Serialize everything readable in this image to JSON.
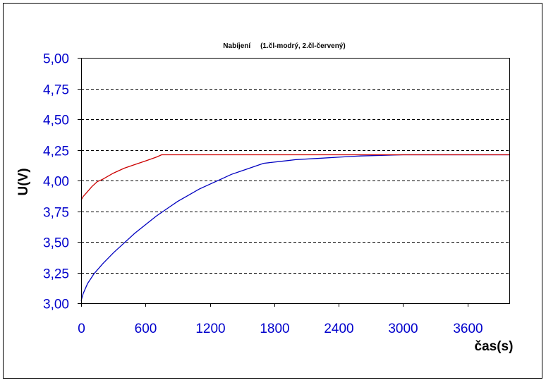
{
  "chart_data": {
    "type": "line",
    "title": "Nabíjení     (1.čl-modrý, 2.čl-červený)",
    "xlabel": "čas(s)",
    "ylabel": "U(V)",
    "xlim": [
      0,
      3990
    ],
    "ylim": [
      3.0,
      5.0
    ],
    "x_ticks": [
      0,
      600,
      1200,
      1800,
      2400,
      3000,
      3600
    ],
    "x_tick_labels": [
      "0",
      "600",
      "1200",
      "1800",
      "2400",
      "3000",
      "3600"
    ],
    "y_ticks": [
      3.0,
      3.25,
      3.5,
      3.75,
      4.0,
      4.25,
      4.5,
      4.75,
      5.0
    ],
    "y_tick_labels": [
      "3,00",
      "3,25",
      "3,50",
      "3,75",
      "4,00",
      "4,25",
      "4,50",
      "4,75",
      "5,00"
    ],
    "grid": "horizontal dashed",
    "series": [
      {
        "color": "#0000c0",
        "x": [
          0,
          20,
          60,
          120,
          200,
          300,
          400,
          500,
          600,
          700,
          800,
          900,
          1000,
          1100,
          1200,
          1300,
          1400,
          1500,
          1600,
          1700,
          1800,
          1900,
          2000,
          2200,
          2400,
          2600,
          2800,
          3000,
          3300,
          3600,
          3990
        ],
        "y": [
          3.02,
          3.08,
          3.16,
          3.24,
          3.32,
          3.41,
          3.49,
          3.57,
          3.64,
          3.71,
          3.77,
          3.83,
          3.88,
          3.93,
          3.97,
          4.01,
          4.05,
          4.08,
          4.11,
          4.14,
          4.15,
          4.16,
          4.17,
          4.18,
          4.19,
          4.2,
          4.205,
          4.21,
          4.21,
          4.21,
          4.21
        ]
      },
      {
        "color": "#cc0000",
        "x": [
          0,
          20,
          50,
          100,
          150,
          200,
          300,
          400,
          500,
          600,
          700,
          750,
          800,
          1000,
          1500,
          2000,
          2500,
          3000,
          3500,
          3990
        ],
        "y": [
          3.84,
          3.87,
          3.9,
          3.95,
          3.99,
          4.01,
          4.06,
          4.1,
          4.13,
          4.16,
          4.19,
          4.21,
          4.21,
          4.21,
          4.21,
          4.21,
          4.21,
          4.21,
          4.21,
          4.21
        ]
      }
    ]
  },
  "colors": {
    "tick_label": "#0000cc",
    "axis_title": "#000000",
    "border": "#000000",
    "grid": "#000000"
  }
}
